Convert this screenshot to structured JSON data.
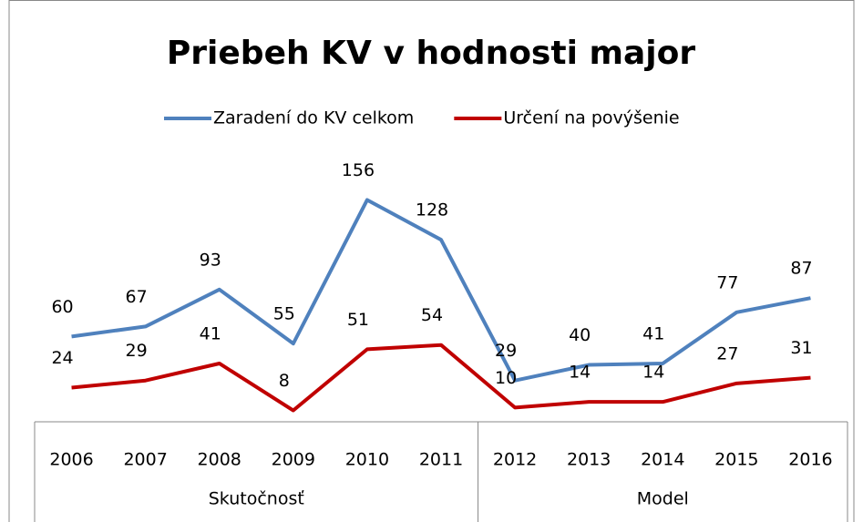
{
  "chart_data": {
    "type": "line",
    "title": "Priebeh KV v hodnosti major",
    "categories": [
      "2006",
      "2007",
      "2008",
      "2009",
      "2010",
      "2011",
      "2012",
      "2013",
      "2014",
      "2015",
      "2016"
    ],
    "groups": [
      {
        "label": "Skutočnosť",
        "span": 6
      },
      {
        "label": "Model",
        "span": 5
      }
    ],
    "series": [
      {
        "name": "Zaradení do KV celkom",
        "color": "#4f81bd",
        "values": [
          60,
          67,
          93,
          55,
          156,
          128,
          29,
          40,
          41,
          77,
          87
        ]
      },
      {
        "name": "Určení na povýšenie",
        "color": "#c00000",
        "values": [
          24,
          29,
          41,
          8,
          51,
          54,
          10,
          14,
          14,
          27,
          31
        ]
      }
    ],
    "ylim": [
      0,
      180
    ],
    "legend": "top"
  }
}
